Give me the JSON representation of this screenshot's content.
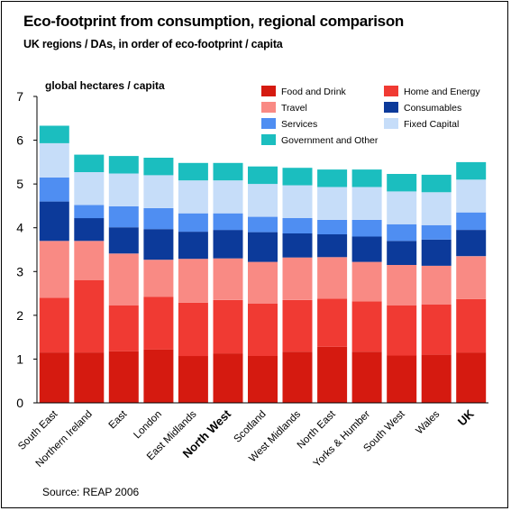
{
  "title": "Eco-footprint from consumption, regional comparison",
  "subtitle": "UK regions / DAs, in order of eco-footprint / capita",
  "source": "Source: REAP 2006",
  "chart_data": {
    "type": "bar",
    "stacked": true,
    "ylabel": "global hectares / capita",
    "ylim": [
      0,
      7
    ],
    "yticks": [
      0,
      1,
      2,
      3,
      4,
      5,
      6,
      7
    ],
    "grid": false,
    "legend_position": "top-right",
    "categories": [
      "South East",
      "Northern Ireland",
      "East",
      "London",
      "East Midlands",
      "North West",
      "Scotland",
      "West Midlands",
      "North East",
      "Yorks & Humber",
      "South West",
      "Wales",
      "UK"
    ],
    "bold_categories": [
      "North West",
      "UK"
    ],
    "series": [
      {
        "name": "Food and Drink",
        "color": "#d51a10",
        "values": [
          1.15,
          1.15,
          1.18,
          1.22,
          1.07,
          1.13,
          1.07,
          1.17,
          1.28,
          1.17,
          1.08,
          1.1,
          1.15
        ]
      },
      {
        "name": "Home and Energy",
        "color": "#f03a33",
        "values": [
          1.25,
          1.65,
          1.05,
          1.2,
          1.22,
          1.22,
          1.2,
          1.18,
          1.1,
          1.15,
          1.15,
          1.15,
          1.22
        ]
      },
      {
        "name": "Travel",
        "color": "#f98a84",
        "values": [
          1.3,
          0.9,
          1.18,
          0.85,
          1.0,
          0.95,
          0.95,
          0.97,
          0.95,
          0.9,
          0.92,
          0.88,
          0.98
        ]
      },
      {
        "name": "Consumables",
        "color": "#0c3a9a",
        "values": [
          0.9,
          0.52,
          0.6,
          0.7,
          0.62,
          0.65,
          0.68,
          0.55,
          0.52,
          0.58,
          0.55,
          0.6,
          0.6
        ]
      },
      {
        "name": "Services",
        "color": "#4f8ef2",
        "values": [
          0.55,
          0.3,
          0.48,
          0.48,
          0.42,
          0.38,
          0.35,
          0.35,
          0.33,
          0.38,
          0.38,
          0.33,
          0.4
        ]
      },
      {
        "name": "Fixed Capital",
        "color": "#c6ddf9",
        "values": [
          0.78,
          0.75,
          0.75,
          0.75,
          0.75,
          0.75,
          0.75,
          0.75,
          0.75,
          0.75,
          0.75,
          0.75,
          0.75
        ]
      },
      {
        "name": "Government and Other",
        "color": "#1bbebf",
        "values": [
          0.4,
          0.4,
          0.4,
          0.4,
          0.4,
          0.4,
          0.4,
          0.4,
          0.4,
          0.4,
          0.4,
          0.4,
          0.4
        ]
      }
    ]
  }
}
